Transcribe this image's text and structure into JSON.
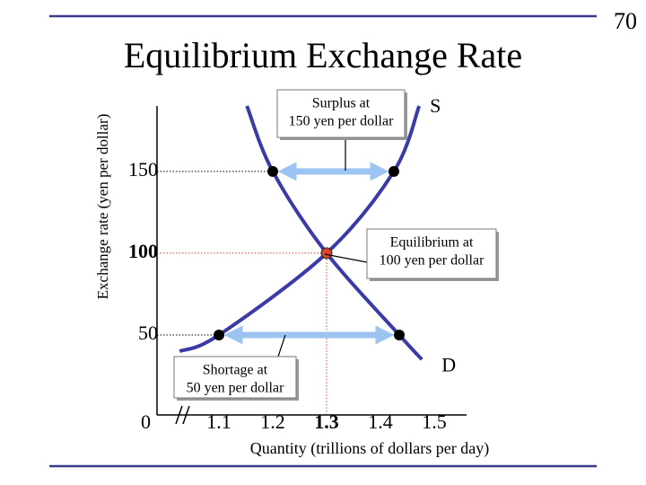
{
  "page_number": "70",
  "chart_data": {
    "type": "line",
    "title": "Equilibrium Exchange Rate",
    "x_label": "Quantity (trillions of dollars per day)",
    "y_label": "Exchange rate (yen per dollar)",
    "xlim": [
      1.0,
      1.55
    ],
    "xticks": [
      1.1,
      1.2,
      1.3,
      1.4,
      1.5
    ],
    "ylim": [
      0,
      190
    ],
    "yticks": [
      0,
      50,
      100,
      150
    ],
    "series": [
      {
        "name": "S",
        "color": "#3b3ba8",
        "x": [
          1.027,
          1.1,
          1.3,
          1.425,
          1.472
        ],
        "values": [
          40,
          50,
          100,
          150,
          190
        ]
      },
      {
        "name": "D",
        "color": "#3b3ba8",
        "x": [
          1.152,
          1.2,
          1.3,
          1.435,
          1.477
        ],
        "values": [
          190,
          150,
          100,
          50,
          35
        ]
      }
    ],
    "equilibrium": {
      "x": 1.3,
      "y": 100,
      "color": "#d9442a"
    },
    "arrow_color": "#9cc4f2",
    "annotations": [
      {
        "lines": [
          "Surplus at",
          "150 yen per dollar"
        ]
      },
      {
        "lines": [
          "Equilibrium at",
          "100 yen per dollar"
        ]
      },
      {
        "lines": [
          "Shortage at",
          "50 yen per dollar"
        ]
      }
    ]
  }
}
